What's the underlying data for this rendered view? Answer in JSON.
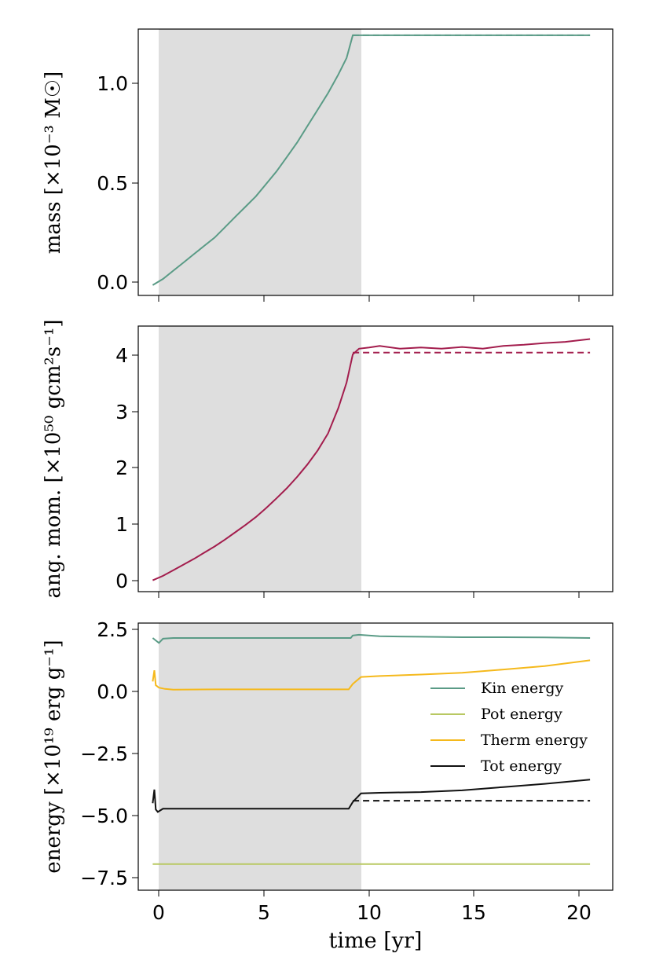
{
  "xlabel": "time [yr]",
  "colors": {
    "kin": "#5a9b86",
    "pot": "#b8c862",
    "therm": "#f5b91c",
    "tot": "#111111",
    "angmom": "#a31d4d",
    "shade": "#dedede"
  },
  "chart_data": [
    {
      "type": "line",
      "name": "mass",
      "ylabel": "mass [×10⁻³ M☉]",
      "xlim": [
        -0.7,
        22.3
      ],
      "ylim": [
        -0.05,
        1.24
      ],
      "xticks": [
        0,
        5,
        10,
        15,
        20
      ],
      "yticks": [
        "0.0",
        "0.5",
        "1.0"
      ],
      "ytick_values": [
        0,
        0.5,
        1.0
      ],
      "shaded_region": [
        0,
        9.7
      ],
      "series": [
        {
          "name": "mass",
          "color_key": "kin",
          "style": "solid",
          "x": [
            0,
            0.5,
            1,
            1.5,
            2,
            2.5,
            3,
            3.5,
            4,
            4.5,
            5,
            5.5,
            6,
            6.5,
            7,
            7.5,
            8,
            8.5,
            9,
            9.4,
            9.7,
            21.2
          ],
          "y": [
            0.0,
            0.03,
            0.07,
            0.11,
            0.15,
            0.19,
            0.23,
            0.28,
            0.33,
            0.38,
            0.43,
            0.49,
            0.55,
            0.62,
            0.69,
            0.77,
            0.85,
            0.93,
            1.02,
            1.1,
            1.21,
            1.21
          ]
        },
        {
          "name": "mass-reference",
          "color_key": "kin",
          "style": "dashed",
          "x": [
            9.7,
            21.2
          ],
          "y": [
            1.21,
            1.21
          ]
        }
      ]
    },
    {
      "type": "line",
      "name": "angular momentum",
      "ylabel": "ang. mom. [×10⁵⁰ gcm²s⁻¹]",
      "xlim": [
        -0.7,
        22.3
      ],
      "ylim": [
        -0.2,
        4.5
      ],
      "xticks": [
        0,
        5,
        10,
        15,
        20
      ],
      "yticks": [
        "0",
        "1",
        "2",
        "3",
        "4"
      ],
      "ytick_values": [
        0,
        1,
        2,
        3,
        4
      ],
      "shaded_region": [
        0,
        9.7
      ],
      "series": [
        {
          "name": "ang-mom",
          "color_key": "angmom",
          "style": "solid",
          "x": [
            0,
            0.5,
            1,
            1.5,
            2,
            2.5,
            3,
            3.5,
            4,
            4.5,
            5,
            5.5,
            6,
            6.5,
            7,
            7.5,
            8,
            8.5,
            9,
            9.4,
            9.7,
            10,
            10.5,
            11,
            12,
            13,
            14,
            15,
            16,
            17,
            18,
            19,
            20,
            21.2
          ],
          "y": [
            0.0,
            0.08,
            0.18,
            0.28,
            0.38,
            0.49,
            0.6,
            0.72,
            0.85,
            0.98,
            1.12,
            1.28,
            1.45,
            1.63,
            1.83,
            2.05,
            2.3,
            2.6,
            3.05,
            3.5,
            4.0,
            4.1,
            4.12,
            4.15,
            4.1,
            4.12,
            4.1,
            4.13,
            4.1,
            4.15,
            4.17,
            4.2,
            4.22,
            4.27
          ]
        },
        {
          "name": "ang-mom-reference",
          "color_key": "angmom",
          "style": "dashed",
          "x": [
            9.7,
            21.2
          ],
          "y": [
            4.03,
            4.03
          ]
        }
      ]
    },
    {
      "type": "line",
      "name": "energy",
      "ylabel": "energy [×10¹⁹ erg g⁻¹]",
      "xlim": [
        -0.7,
        22.3
      ],
      "ylim": [
        -8.0,
        2.75
      ],
      "xticks": [
        0,
        5,
        10,
        15,
        20
      ],
      "xtick_labels": [
        "0",
        "5",
        "10",
        "15",
        "20"
      ],
      "yticks": [
        "2.5",
        "0.0",
        "−2.5",
        "−5.0",
        "−7.5"
      ],
      "ytick_values": [
        2.5,
        0.0,
        -2.5,
        -5.0,
        -7.5
      ],
      "shaded_region": [
        0,
        9.7
      ],
      "legend_position": "center-right",
      "legend": [
        "Kin energy",
        "Pot energy",
        "Therm energy",
        "Tot energy"
      ],
      "series": [
        {
          "name": "Kin energy",
          "color_key": "kin",
          "style": "solid",
          "x": [
            0,
            0.15,
            0.3,
            0.5,
            1,
            2,
            5,
            9.6,
            9.7,
            10,
            11,
            13,
            15,
            17,
            19,
            21.2
          ],
          "y": [
            2.15,
            2.05,
            1.95,
            2.12,
            2.15,
            2.15,
            2.15,
            2.15,
            2.25,
            2.28,
            2.22,
            2.2,
            2.18,
            2.18,
            2.17,
            2.15
          ]
        },
        {
          "name": "Pot energy",
          "color_key": "pot",
          "style": "solid",
          "x": [
            0,
            21.2
          ],
          "y": [
            -6.95,
            -6.95
          ]
        },
        {
          "name": "Therm energy",
          "color_key": "therm",
          "style": "solid",
          "x": [
            0,
            0.08,
            0.15,
            0.3,
            0.6,
            1,
            3,
            9.5,
            9.7,
            10.1,
            11,
            13,
            15,
            17,
            19,
            21.2
          ],
          "y": [
            0.4,
            0.85,
            0.25,
            0.15,
            0.1,
            0.07,
            0.08,
            0.08,
            0.3,
            0.58,
            0.62,
            0.68,
            0.75,
            0.88,
            1.02,
            1.25
          ]
        },
        {
          "name": "Tot energy",
          "color_key": "tot",
          "style": "solid",
          "x": [
            0,
            0.08,
            0.15,
            0.25,
            0.5,
            1,
            2,
            5,
            9.5,
            9.7,
            10.1,
            11,
            13,
            15,
            17,
            19,
            21.2
          ],
          "y": [
            -4.5,
            -3.95,
            -4.75,
            -4.85,
            -4.72,
            -4.72,
            -4.72,
            -4.72,
            -4.72,
            -4.45,
            -4.1,
            -4.08,
            -4.05,
            -3.98,
            -3.85,
            -3.72,
            -3.55
          ]
        },
        {
          "name": "Tot energy reference",
          "color_key": "tot",
          "style": "dashed",
          "x": [
            9.7,
            21.2
          ],
          "y": [
            -4.4,
            -4.4
          ]
        }
      ]
    }
  ]
}
